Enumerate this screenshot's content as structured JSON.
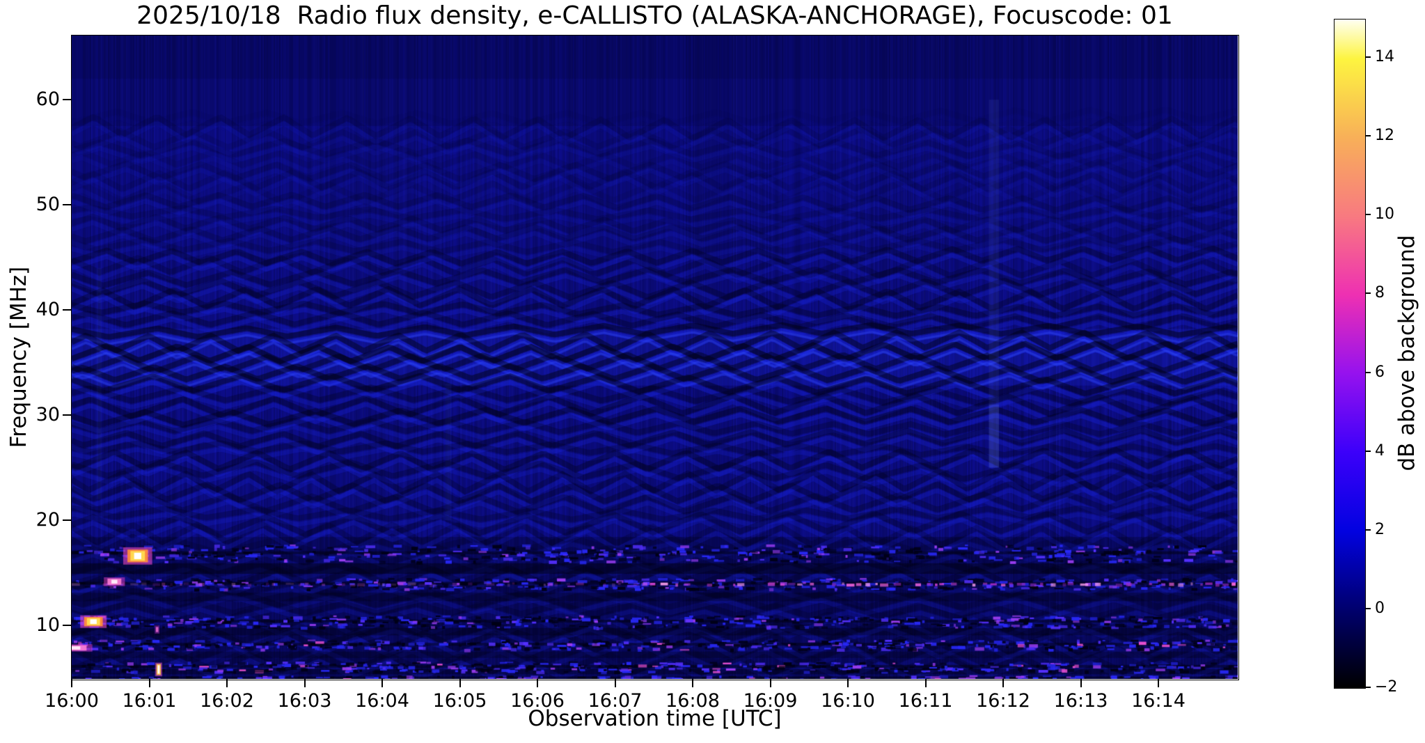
{
  "figure": {
    "title": "2025/10/18  Radio flux density, e-CALLISTO (ALASKA-ANCHORAGE), Focuscode: 01",
    "x_axis": {
      "label": "Observation time [UTC]",
      "tick_labels": [
        "16:00",
        "16:01",
        "16:02",
        "16:03",
        "16:04",
        "16:05",
        "16:06",
        "16:07",
        "16:08",
        "16:09",
        "16:10",
        "16:11",
        "16:12",
        "16:13",
        "16:14"
      ]
    },
    "y_axis": {
      "label": "Frequency [MHz]",
      "tick_labels": [
        "60",
        "50",
        "40",
        "30",
        "20",
        "10"
      ]
    },
    "colorbar": {
      "label": "dB above background",
      "tick_labels": [
        "14",
        "12",
        "10",
        "8",
        "6",
        "4",
        "2",
        "0",
        "−2"
      ]
    }
  },
  "chart_data": {
    "type": "heatmap",
    "title": "2025/10/18  Radio flux density, e-CALLISTO (ALASKA-ANCHORAGE), Focuscode: 01",
    "xlabel": "Observation time [UTC]",
    "ylabel": "Frequency [MHz]",
    "x_ticks": [
      "16:00",
      "16:01",
      "16:02",
      "16:03",
      "16:04",
      "16:05",
      "16:06",
      "16:07",
      "16:08",
      "16:09",
      "16:10",
      "16:11",
      "16:12",
      "16:13",
      "16:14"
    ],
    "x_range_minutes_after_1600_utc": [
      0,
      15.02
    ],
    "y_ticks_mhz": [
      10,
      20,
      30,
      40,
      50,
      60
    ],
    "y_range_mhz": [
      4.9,
      66.1
    ],
    "grid": false,
    "legend": "none",
    "colorbar": {
      "label": "dB above background",
      "ticks_db": [
        -2,
        0,
        2,
        4,
        6,
        8,
        10,
        12,
        14
      ],
      "range_db": [
        -2,
        15
      ],
      "colormap_stops": [
        {
          "db": -2,
          "color": "#000000"
        },
        {
          "db": 0,
          "color": "#00006e"
        },
        {
          "db": 2,
          "color": "#0202e0"
        },
        {
          "db": 4,
          "color": "#3c00fa"
        },
        {
          "db": 6,
          "color": "#9612ee"
        },
        {
          "db": 8,
          "color": "#ee30b2"
        },
        {
          "db": 10,
          "color": "#f87a80"
        },
        {
          "db": 12,
          "color": "#f8b058"
        },
        {
          "db": 14,
          "color": "#fdf440"
        },
        {
          "db": 15,
          "color": "#fffff2"
        }
      ]
    },
    "description": "Quiet-Sun dynamic radio spectrum, ~0 to 3 dB above background over most of the band. Undulating ionospheric ripple bands cover 5-55 MHz, brightest around 33-38 MHz. Horizontal RFI speckle bands near 17, 14, 10.5, 8.2 and 6 MHz; a magenta dashed carrier at ~14 MHz strengthens after 16:07. Bright point bursts (10-15 dB) near 16:00-16:01 at 16.6, 14.2, 10.4, 7.9 and 5.8 MHz. Faint bright vertical streak at ~16:11.9 spanning ~25-60 MHz.",
    "render": {
      "base_color": "#0d0d8a",
      "ridge_wash": {
        "f_min": 32.8,
        "f_max": 38.2,
        "color": "rgba(30,45,230,0.22)"
      },
      "ripple_zones": [
        {
          "f_min": 57,
          "f_max": 66.2,
          "strength": 0.06
        },
        {
          "f_min": 50,
          "f_max": 57,
          "strength": 0.22
        },
        {
          "f_min": 45,
          "f_max": 50,
          "strength": 0.34
        },
        {
          "f_min": 41,
          "f_max": 45,
          "strength": 0.5
        },
        {
          "f_min": 38,
          "f_max": 41,
          "strength": 0.72
        },
        {
          "f_min": 32.5,
          "f_max": 38,
          "strength": 1.0
        },
        {
          "f_min": 27,
          "f_max": 32.5,
          "strength": 0.72
        },
        {
          "f_min": 18.5,
          "f_max": 27,
          "strength": 0.58
        },
        {
          "f_min": 4.8,
          "f_max": 18.5,
          "strength": 0.42
        }
      ],
      "dark_stripes": [
        {
          "f_center": 15.4,
          "f_height": 1.0,
          "alpha": 0.45
        },
        {
          "f_center": 12.7,
          "f_height": 0.8,
          "alpha": 0.3
        },
        {
          "f_center": 9.4,
          "f_height": 0.7,
          "alpha": 0.35
        },
        {
          "f_center": 7.2,
          "f_height": 0.6,
          "alpha": 0.3
        },
        {
          "f_center": 5.6,
          "f_height": 0.5,
          "alpha": 0.35
        }
      ],
      "rfi_bands": [
        {
          "f_center": 16.9,
          "f_height": 1.6,
          "density": 1.0
        },
        {
          "f_center": 14.0,
          "f_height": 1.0,
          "density": 0.9
        },
        {
          "f_center": 10.4,
          "f_height": 1.1,
          "density": 1.0
        },
        {
          "f_center": 8.2,
          "f_height": 0.9,
          "density": 0.9
        },
        {
          "f_center": 6.1,
          "f_height": 0.9,
          "density": 0.9
        },
        {
          "f_center": 5.0,
          "f_height": 0.5,
          "density": 0.6
        }
      ],
      "speckle_palette": [
        "#000014",
        "#2828f5",
        "#5530ff",
        "#9a3cf0"
      ],
      "pink_speck_color": "#e84fd0",
      "pink_line": {
        "f": 13.95,
        "left_alpha": 0.33,
        "right_alpha": 0.95,
        "transition_minute": 7.3,
        "palette": [
          "#a22cc0",
          "#d844dc",
          "#ff68e4",
          "#ffa0f2"
        ]
      },
      "bursts": [
        {
          "t": 0.85,
          "f": 16.6,
          "w_min": 0.22,
          "h_mhz": 1.1,
          "style": "orange-white"
        },
        {
          "t": 0.55,
          "f": 14.15,
          "w_min": 0.17,
          "h_mhz": 0.6,
          "style": "pink"
        },
        {
          "t": 0.28,
          "f": 10.35,
          "w_min": 0.2,
          "h_mhz": 0.8,
          "style": "orange-white"
        },
        {
          "t": 0.05,
          "f": 7.85,
          "w_min": 0.27,
          "h_mhz": 0.5,
          "style": "pink"
        },
        {
          "t": 1.12,
          "f": 5.8,
          "w_min": 0.05,
          "h_mhz": 1.0,
          "style": "white-yellow"
        },
        {
          "t": 1.1,
          "f": 9.6,
          "w_min": 0.04,
          "h_mhz": 0.6,
          "style": "pink-faint"
        }
      ],
      "vertical_streaks": [
        {
          "t": 11.88,
          "f_min": 25,
          "f_max": 60,
          "alpha": 0.09,
          "w_min": 0.13
        },
        {
          "t": 11.88,
          "f_min": 25,
          "f_max": 31,
          "alpha": 0.14,
          "w_min": 0.13
        },
        {
          "t": 4.85,
          "f_min": 20,
          "f_max": 33,
          "alpha": 0.05,
          "w_min": 0.08
        },
        {
          "t": 0.35,
          "f_min": 22,
          "f_max": 44,
          "alpha": 0.05,
          "w_min": 0.06
        }
      ]
    }
  }
}
